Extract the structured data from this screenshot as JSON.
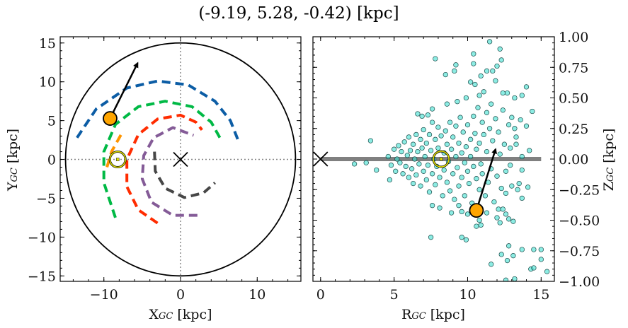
{
  "title": "(-9.19, 5.28, -0.42) [kpc]",
  "chart_data": [
    {
      "type": "scatter",
      "panel": "left",
      "xlabel": {
        "main": "X",
        "sub": "GC",
        "unit": " [kpc]"
      },
      "ylabel": {
        "main": "Y",
        "sub": "GC",
        "unit": " [kpc]"
      },
      "xlim": [
        -15.7,
        15.7
      ],
      "ylim": [
        -15.7,
        15.8
      ],
      "xticks": [
        -10,
        0,
        10
      ],
      "yticks": [
        -15,
        -10,
        -5,
        0,
        5,
        10,
        15
      ],
      "grid": false,
      "boundary_circle_radius": 15,
      "spiral_arms": [
        {
          "color": "#0c5da5",
          "points": [
            [
              -13.5,
              2.8
            ],
            [
              -11,
              6.5
            ],
            [
              -7,
              9.2
            ],
            [
              -3,
              10.1
            ],
            [
              1,
              9.6
            ],
            [
              4.5,
              7.5
            ],
            [
              6.5,
              5
            ],
            [
              7.5,
              2.5
            ]
          ]
        },
        {
          "color": "#00b945",
          "points": [
            [
              -8.5,
              -7.5
            ],
            [
              -10,
              -3
            ],
            [
              -10,
              1
            ],
            [
              -8.5,
              4.5
            ],
            [
              -5.5,
              6.8
            ],
            [
              -2,
              7.5
            ],
            [
              1.5,
              6.8
            ],
            [
              4,
              4.8
            ],
            [
              5.3,
              2.5
            ]
          ]
        },
        {
          "color": "#ff2c00",
          "points": [
            [
              -3,
              -8.2
            ],
            [
              -5.5,
              -6.5
            ],
            [
              -7,
              -3.5
            ],
            [
              -7,
              0
            ],
            [
              -5.5,
              3.2
            ],
            [
              -3,
              5.2
            ],
            [
              0,
              5.7
            ],
            [
              2,
              4.8
            ],
            [
              2.8,
              3.8
            ]
          ]
        },
        {
          "color": "#845b97",
          "points": [
            [
              2.2,
              -7.2
            ],
            [
              -1,
              -7.2
            ],
            [
              -3.8,
              -5.5
            ],
            [
              -5,
              -2.5
            ],
            [
              -4.8,
              0.5
            ],
            [
              -3.5,
              2.8
            ],
            [
              -1,
              4.1
            ],
            [
              1.7,
              3.1
            ]
          ]
        },
        {
          "color": "#474747",
          "points": [
            [
              -3.4,
              1
            ],
            [
              -3.3,
              -1.5
            ],
            [
              -2,
              -3.7
            ],
            [
              0.5,
              -4.9
            ],
            [
              3,
              -4.3
            ],
            [
              4.5,
              -3
            ]
          ]
        },
        {
          "color": "#ff9500",
          "points": [
            [
              -9.6,
              -1
            ],
            [
              -9,
              1
            ],
            [
              -7.7,
              3.3
            ]
          ]
        }
      ],
      "sun": [
        -8.2,
        0
      ],
      "galactic_center": [
        0,
        0
      ],
      "target": [
        -9.19,
        5.28
      ],
      "velocity_arrow_end": [
        -5.6,
        12.4
      ],
      "target_color": "#ffa500"
    },
    {
      "type": "scatter",
      "panel": "right",
      "xlabel": {
        "main": "R",
        "sub": "GC",
        "unit": " [kpc]"
      },
      "ylabel": {
        "main": "Z",
        "sub": "GC",
        "unit": " [kpc]"
      },
      "xlim": [
        -0.52,
        15.9
      ],
      "ylim": [
        -1.0,
        1.0
      ],
      "xticks": [
        0,
        5,
        10,
        15
      ],
      "yticks": [
        -1.0,
        -0.75,
        -0.5,
        -0.25,
        0.0,
        0.25,
        0.5,
        0.75,
        1.0
      ],
      "ytick_labels": [
        "−1.00",
        "−0.75",
        "−0.50",
        "−0.25",
        "0.00",
        "0.25",
        "0.50",
        "0.75",
        "1.00"
      ],
      "grid": false,
      "disk_line": [
        [
          0,
          0
        ],
        [
          15,
          0
        ]
      ],
      "sun": [
        8.2,
        0
      ],
      "galactic_center": [
        0,
        0
      ],
      "target": [
        10.6,
        -0.42
      ],
      "velocity_arrow_end": [
        11.9,
        0.08
      ],
      "point_color": "#40e0d0",
      "points": [
        [
          11.5,
          0.96
        ],
        [
          12.2,
          0.9
        ],
        [
          10.4,
          0.86
        ],
        [
          7.8,
          0.82
        ],
        [
          10.4,
          0.78
        ],
        [
          9.2,
          0.77
        ],
        [
          9.1,
          0.72
        ],
        [
          8.5,
          0.69
        ],
        [
          12.3,
          0.81
        ],
        [
          12.0,
          0.76
        ],
        [
          11.3,
          0.72
        ],
        [
          11.7,
          0.72
        ],
        [
          10.9,
          0.68
        ],
        [
          11.9,
          0.64
        ],
        [
          10.2,
          0.63
        ],
        [
          10.5,
          0.61
        ],
        [
          14.0,
          0.59
        ],
        [
          11.1,
          0.55
        ],
        [
          12.4,
          0.54
        ],
        [
          12.7,
          0.54
        ],
        [
          13.7,
          0.52
        ],
        [
          13.2,
          0.5
        ],
        [
          14.4,
          0.39
        ],
        [
          6.6,
          0.37
        ],
        [
          7.6,
          0.41
        ],
        [
          6.9,
          0.35
        ],
        [
          3.4,
          0.15
        ],
        [
          2.3,
          -0.04
        ],
        [
          3.1,
          -0.03
        ],
        [
          3.8,
          -0.09
        ],
        [
          4.7,
          -0.17
        ],
        [
          14.2,
          0.07
        ],
        [
          13.7,
          0.02
        ],
        [
          13.7,
          -0.09
        ],
        [
          14.1,
          -0.23
        ],
        [
          13.7,
          -0.32
        ],
        [
          7.5,
          -0.64
        ],
        [
          9.6,
          -0.64
        ],
        [
          9.9,
          -0.66
        ],
        [
          7.6,
          -0.38
        ],
        [
          10.6,
          -0.55
        ],
        [
          10.9,
          -0.54
        ],
        [
          12.8,
          -0.71
        ],
        [
          12.3,
          -0.78
        ],
        [
          13.1,
          -0.79
        ],
        [
          12.7,
          -0.83
        ],
        [
          11.6,
          -0.86
        ],
        [
          13.7,
          -0.74
        ],
        [
          14.5,
          -0.74
        ],
        [
          15.0,
          -0.74
        ],
        [
          15.0,
          -0.82
        ],
        [
          14.3,
          -0.9
        ],
        [
          14.5,
          -0.89
        ],
        [
          15.4,
          -0.92
        ],
        [
          12.6,
          -0.99
        ],
        [
          13.2,
          -0.98
        ],
        [
          12.0,
          -0.48
        ],
        [
          12.2,
          -0.52
        ],
        [
          12.8,
          -0.49
        ],
        [
          13.1,
          -0.51
        ],
        [
          12.1,
          -0.41
        ],
        [
          12.4,
          -0.41
        ],
        [
          12.6,
          -0.45
        ],
        [
          12.6,
          -0.28
        ],
        [
          13.0,
          -0.22
        ],
        [
          13.4,
          -0.25
        ],
        [
          13.5,
          -0.2
        ],
        [
          8.9,
          -0.44
        ],
        [
          9.6,
          -0.43
        ],
        [
          10.8,
          -0.5
        ],
        [
          13.2,
          0.25
        ],
        [
          13.3,
          0.18
        ],
        [
          13.3,
          0.12
        ],
        [
          12.9,
          0.09
        ],
        [
          13.0,
          0.34
        ],
        [
          13.6,
          0.32
        ],
        [
          14.0,
          0.27
        ],
        [
          4.6,
          0.02
        ],
        [
          4.8,
          -0.05
        ],
        [
          5.0,
          0.08
        ],
        [
          5.1,
          -0.1
        ],
        [
          5.2,
          0.0
        ],
        [
          5.3,
          0.11
        ],
        [
          5.4,
          -0.03
        ],
        [
          5.5,
          0.06
        ],
        [
          5.6,
          -0.12
        ],
        [
          5.7,
          0.14
        ],
        [
          5.8,
          -0.06
        ],
        [
          5.9,
          0.03
        ],
        [
          6.0,
          -0.15
        ],
        [
          6.0,
          0.18
        ],
        [
          6.1,
          0.07
        ],
        [
          6.2,
          -0.08
        ],
        [
          6.3,
          0.12
        ],
        [
          6.3,
          -0.2
        ],
        [
          6.4,
          0.0
        ],
        [
          6.5,
          0.2
        ],
        [
          6.5,
          -0.13
        ],
        [
          6.6,
          0.06
        ],
        [
          6.7,
          -0.04
        ],
        [
          6.8,
          0.16
        ],
        [
          6.8,
          -0.22
        ],
        [
          6.9,
          0.09
        ],
        [
          7.0,
          -0.1
        ],
        [
          7.0,
          0.24
        ],
        [
          7.1,
          0.02
        ],
        [
          7.2,
          -0.17
        ],
        [
          7.2,
          0.13
        ],
        [
          7.3,
          -0.05
        ],
        [
          7.4,
          0.2
        ],
        [
          7.4,
          -0.27
        ],
        [
          7.5,
          0.07
        ],
        [
          7.6,
          -0.12
        ],
        [
          7.6,
          0.3
        ],
        [
          7.7,
          0.0
        ],
        [
          7.8,
          0.16
        ],
        [
          7.8,
          -0.21
        ],
        [
          7.9,
          -0.06
        ],
        [
          8.0,
          0.26
        ],
        [
          8.0,
          0.09
        ],
        [
          8.1,
          -0.15
        ],
        [
          8.2,
          0.19
        ],
        [
          8.3,
          -0.3
        ],
        [
          8.4,
          0.05
        ],
        [
          8.4,
          -0.09
        ],
        [
          8.5,
          0.23
        ],
        [
          8.6,
          -0.19
        ],
        [
          8.6,
          0.12
        ],
        [
          8.7,
          -0.02
        ],
        [
          8.8,
          0.3
        ],
        [
          8.8,
          -0.26
        ],
        [
          8.9,
          0.08
        ],
        [
          9.0,
          -0.12
        ],
        [
          9.0,
          0.18
        ],
        [
          9.1,
          -0.33
        ],
        [
          9.2,
          0.02
        ],
        [
          9.2,
          0.27
        ],
        [
          9.3,
          -0.07
        ],
        [
          9.4,
          0.13
        ],
        [
          9.4,
          -0.22
        ],
        [
          9.5,
          0.34
        ],
        [
          9.6,
          0.05
        ],
        [
          9.6,
          -0.15
        ],
        [
          9.7,
          0.22
        ],
        [
          9.8,
          -0.03
        ],
        [
          9.8,
          -0.3
        ],
        [
          9.9,
          0.1
        ],
        [
          10.0,
          0.28
        ],
        [
          10.0,
          -0.1
        ],
        [
          10.1,
          -0.2
        ],
        [
          10.2,
          0.16
        ],
        [
          10.2,
          0.02
        ],
        [
          10.3,
          -0.36
        ],
        [
          10.4,
          0.35
        ],
        [
          10.4,
          -0.06
        ],
        [
          10.5,
          0.21
        ],
        [
          10.6,
          -0.16
        ],
        [
          10.6,
          0.08
        ],
        [
          10.7,
          0.42
        ],
        [
          10.8,
          -0.25
        ],
        [
          10.8,
          0.13
        ],
        [
          10.9,
          -0.04
        ],
        [
          11.0,
          0.3
        ],
        [
          11.0,
          -0.12
        ],
        [
          11.1,
          0.2
        ],
        [
          11.2,
          -0.3
        ],
        [
          11.3,
          0.06
        ],
        [
          11.3,
          0.38
        ],
        [
          11.4,
          -0.19
        ],
        [
          11.5,
          0.25
        ],
        [
          11.6,
          -0.08
        ],
        [
          11.7,
          0.15
        ],
        [
          11.8,
          -0.35
        ],
        [
          11.9,
          0.33
        ],
        [
          12.0,
          -0.14
        ],
        [
          12.1,
          0.22
        ],
        [
          12.2,
          0.04
        ],
        [
          12.3,
          -0.24
        ],
        [
          12.4,
          0.4
        ],
        [
          12.5,
          0.12
        ],
        [
          12.6,
          -0.1
        ],
        [
          12.8,
          0.28
        ],
        [
          12.9,
          -0.05
        ],
        [
          7.3,
          0.36
        ],
        [
          8.6,
          0.45
        ],
        [
          9.3,
          0.47
        ],
        [
          9.9,
          0.5
        ],
        [
          10.8,
          0.52
        ],
        [
          8.1,
          -0.4
        ],
        [
          9.4,
          -0.38
        ],
        [
          10.0,
          -0.45
        ],
        [
          11.3,
          -0.44
        ],
        [
          11.6,
          0.45
        ]
      ]
    }
  ]
}
